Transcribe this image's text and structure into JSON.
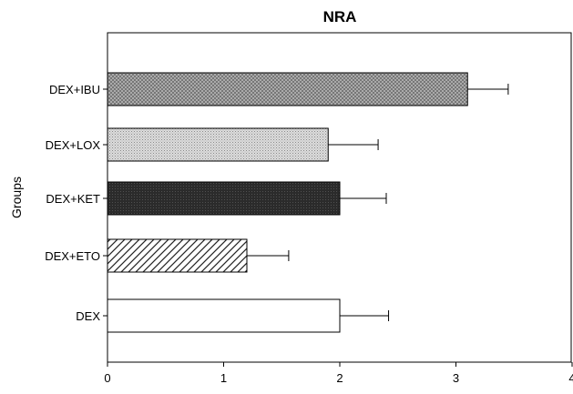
{
  "chart_data": {
    "type": "bar",
    "orientation": "horizontal",
    "title": "NRA",
    "ylabel": "Groups",
    "xlabel": "",
    "categories": [
      "DEX",
      "DEX+ETO",
      "DEX+KET",
      "DEX+LOX",
      "DEX+IBU"
    ],
    "values": [
      2.0,
      1.2,
      2.0,
      1.9,
      3.1
    ],
    "errors": [
      0.42,
      0.36,
      0.4,
      0.43,
      0.35
    ],
    "fills": [
      "white",
      "diagonal-hatch",
      "dark-fill",
      "light-dots",
      "medium-crosshatch"
    ],
    "xlim": [
      0,
      4
    ],
    "xticks": [
      "0",
      "1",
      "2",
      "3",
      "4"
    ],
    "grid": false,
    "legend": "none"
  }
}
